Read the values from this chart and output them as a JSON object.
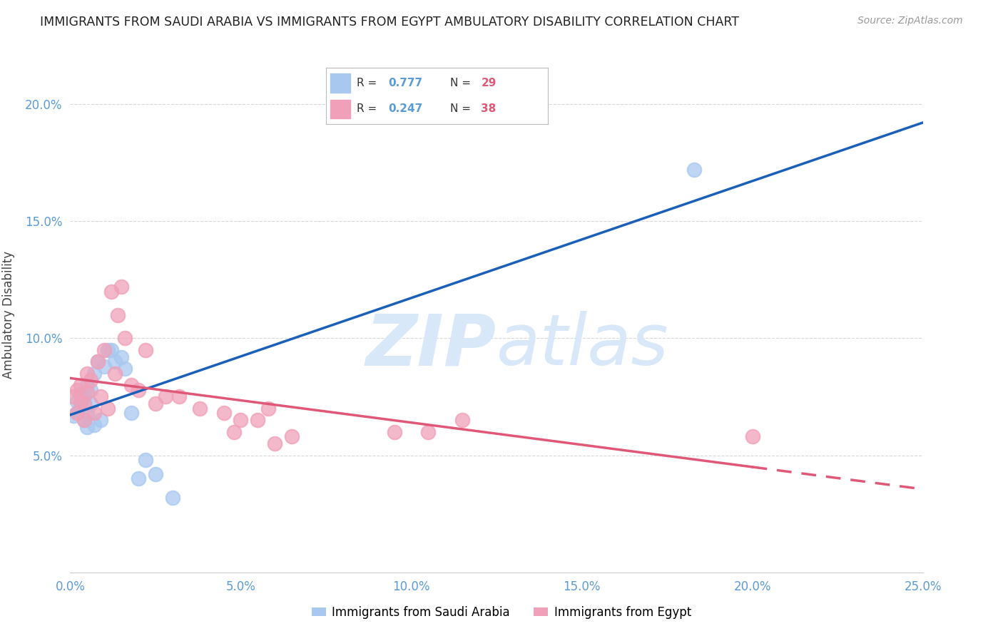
{
  "title": "IMMIGRANTS FROM SAUDI ARABIA VS IMMIGRANTS FROM EGYPT AMBULATORY DISABILITY CORRELATION CHART",
  "source": "Source: ZipAtlas.com",
  "ylabel": "Ambulatory Disability",
  "legend_labels": [
    "Immigrants from Saudi Arabia",
    "Immigrants from Egypt"
  ],
  "r_saudi": 0.777,
  "n_saudi": 29,
  "r_egypt": 0.247,
  "n_egypt": 38,
  "xlim": [
    0.0,
    0.25
  ],
  "ylim": [
    0.0,
    0.22
  ],
  "xtick_labels": [
    "0.0%",
    "5.0%",
    "10.0%",
    "15.0%",
    "20.0%",
    "25.0%"
  ],
  "xtick_vals": [
    0.0,
    0.05,
    0.1,
    0.15,
    0.2,
    0.25
  ],
  "ytick_labels": [
    "5.0%",
    "10.0%",
    "15.0%",
    "20.0%"
  ],
  "ytick_vals": [
    0.05,
    0.1,
    0.15,
    0.2
  ],
  "color_saudi": "#a8c8f0",
  "color_egypt": "#f0a0b8",
  "trendline_saudi_color": "#1a5fba",
  "trendline_egypt_color": "#e05878",
  "watermark_color": "#d8e8f8",
  "background_color": "#ffffff",
  "saudi_x": [
    0.001,
    0.002,
    0.002,
    0.003,
    0.003,
    0.003,
    0.004,
    0.004,
    0.005,
    0.005,
    0.005,
    0.006,
    0.006,
    0.007,
    0.007,
    0.008,
    0.009,
    0.01,
    0.011,
    0.012,
    0.013,
    0.015,
    0.016,
    0.018,
    0.02,
    0.022,
    0.025,
    0.03,
    0.183
  ],
  "saudi_y": [
    0.067,
    0.068,
    0.073,
    0.07,
    0.076,
    0.072,
    0.065,
    0.075,
    0.08,
    0.068,
    0.062,
    0.072,
    0.078,
    0.085,
    0.063,
    0.09,
    0.065,
    0.088,
    0.095,
    0.095,
    0.09,
    0.092,
    0.087,
    0.068,
    0.04,
    0.048,
    0.042,
    0.032,
    0.172
  ],
  "egypt_x": [
    0.001,
    0.002,
    0.002,
    0.003,
    0.003,
    0.004,
    0.004,
    0.005,
    0.005,
    0.006,
    0.007,
    0.008,
    0.009,
    0.01,
    0.011,
    0.012,
    0.013,
    0.014,
    0.015,
    0.016,
    0.018,
    0.02,
    0.022,
    0.025,
    0.028,
    0.032,
    0.038,
    0.045,
    0.048,
    0.05,
    0.055,
    0.058,
    0.06,
    0.065,
    0.095,
    0.105,
    0.115,
    0.2
  ],
  "egypt_y": [
    0.075,
    0.078,
    0.068,
    0.073,
    0.08,
    0.065,
    0.072,
    0.085,
    0.077,
    0.082,
    0.068,
    0.09,
    0.075,
    0.095,
    0.07,
    0.12,
    0.085,
    0.11,
    0.122,
    0.1,
    0.08,
    0.078,
    0.095,
    0.072,
    0.075,
    0.075,
    0.07,
    0.068,
    0.06,
    0.065,
    0.065,
    0.07,
    0.055,
    0.058,
    0.06,
    0.06,
    0.065,
    0.058
  ]
}
